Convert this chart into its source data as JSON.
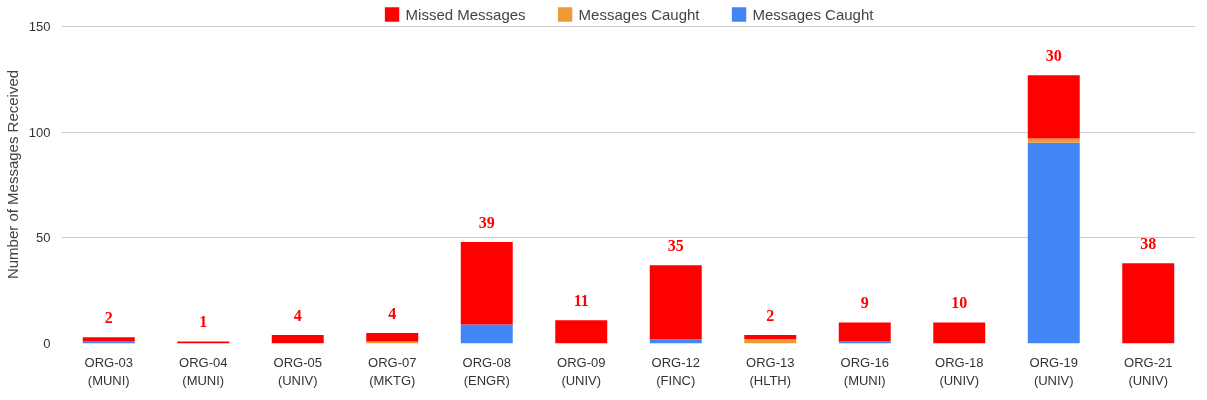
{
  "chart_data": {
    "type": "bar",
    "stacked": true,
    "ylabel": "Number of Messages Received",
    "categories": [
      "ORG-03\n(MUNI)",
      "ORG-04\n(MUNI)",
      "ORG-05\n(UNIV)",
      "ORG-07\n(MKTG)",
      "ORG-08\n(ENGR)",
      "ORG-09\n(UNIV)",
      "ORG-12\n(FINC)",
      "ORG-13\n(HLTH)",
      "ORG-16\n(MUNI)",
      "ORG-18\n(UNIV)",
      "ORG-19\n(UNIV)",
      "ORG-21\n(UNIV)"
    ],
    "series": [
      {
        "name": "Messages Caught",
        "color": "#4285f4",
        "values": [
          1,
          0,
          0,
          0,
          9,
          0,
          2,
          0,
          1,
          0,
          95,
          0
        ]
      },
      {
        "name": "Messages Caught",
        "color": "#f09a37",
        "values": [
          0,
          0,
          0,
          1,
          0,
          0,
          0,
          2,
          0,
          0,
          2,
          0
        ]
      },
      {
        "name": "Missed Messages",
        "color": "#ff0000",
        "values": [
          2,
          1,
          4,
          4,
          39,
          11,
          35,
          2,
          9,
          10,
          30,
          38
        ],
        "value_labels": [
          "2",
          "1",
          "4",
          "4",
          "39",
          "11",
          "35",
          "2",
          "9",
          "10",
          "30",
          "38"
        ]
      }
    ],
    "ylim": [
      0,
      160
    ],
    "yticks": [
      0,
      50,
      100,
      150
    ],
    "grid": "y",
    "legend": "top"
  }
}
